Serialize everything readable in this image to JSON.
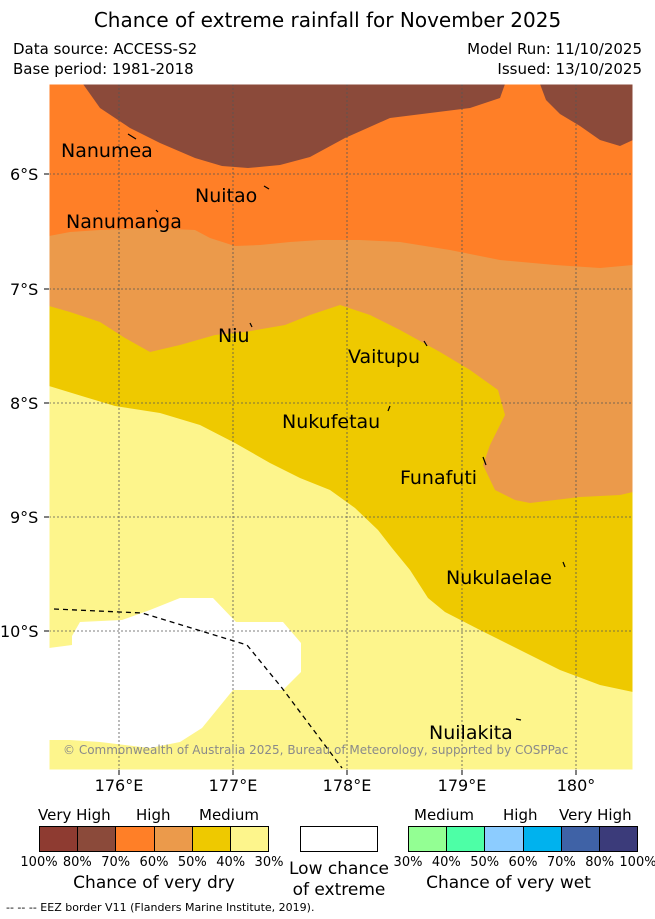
{
  "title": "Chance of extreme rainfall for November 2025",
  "data_source": "Data source: ACCESS-S2",
  "base_period": "Base period: 1981-2018",
  "model_run": "Model Run: 11/10/2025",
  "issued": "Issued: 13/10/2025",
  "copyright": "© Commonwealth of Australia 2025, Bureau of Meteorology, supported by COSPPac",
  "lat_labels": [
    "6°S",
    "7°S",
    "8°S",
    "9°S",
    "10°S"
  ],
  "lon_labels": [
    "176°E",
    "177°E",
    "178°E",
    "179°E",
    "180°"
  ],
  "islands": [
    "Nanumea",
    "Nuitao",
    "Nanumanga",
    "Niu",
    "Vaitupu",
    "Nukufetau",
    "Funafuti",
    "Nukulaelae",
    "Nuilakita"
  ],
  "colors": {
    "very_high_dry": "#8b4a3a",
    "high_dry": "#ff7f27",
    "medium_dry": "#eb9a4b",
    "dry_50": "#eec900",
    "dry_30": "#fdf58c",
    "low": "#ffffff"
  },
  "legend": {
    "dry": {
      "groups": [
        "Very High",
        "High",
        "Medium"
      ],
      "colors": [
        "#8e3b31",
        "#8b4a3a",
        "#ff7f27",
        "#eb9a4b",
        "#eec900",
        "#fdf58c"
      ],
      "percent_labels": [
        "100%",
        "80%",
        "70%",
        "60%",
        "50%",
        "40%",
        "30%"
      ],
      "caption": "Chance of very dry"
    },
    "low": {
      "caption_line1": "Low chance",
      "caption_line2": "of extreme"
    },
    "wet": {
      "groups": [
        "Medium",
        "High",
        "Very High"
      ],
      "colors": [
        "#93ff93",
        "#4dffa6",
        "#8cccff",
        "#00b2ee",
        "#3f62a6",
        "#3b3b7a"
      ],
      "percent_labels": [
        "30%",
        "40%",
        "50%",
        "60%",
        "70%",
        "80%",
        "100%"
      ],
      "caption": "Chance of very wet"
    }
  },
  "footer": "-- -- -- EEZ border V11 (Flanders Marine Institute, 2019)."
}
